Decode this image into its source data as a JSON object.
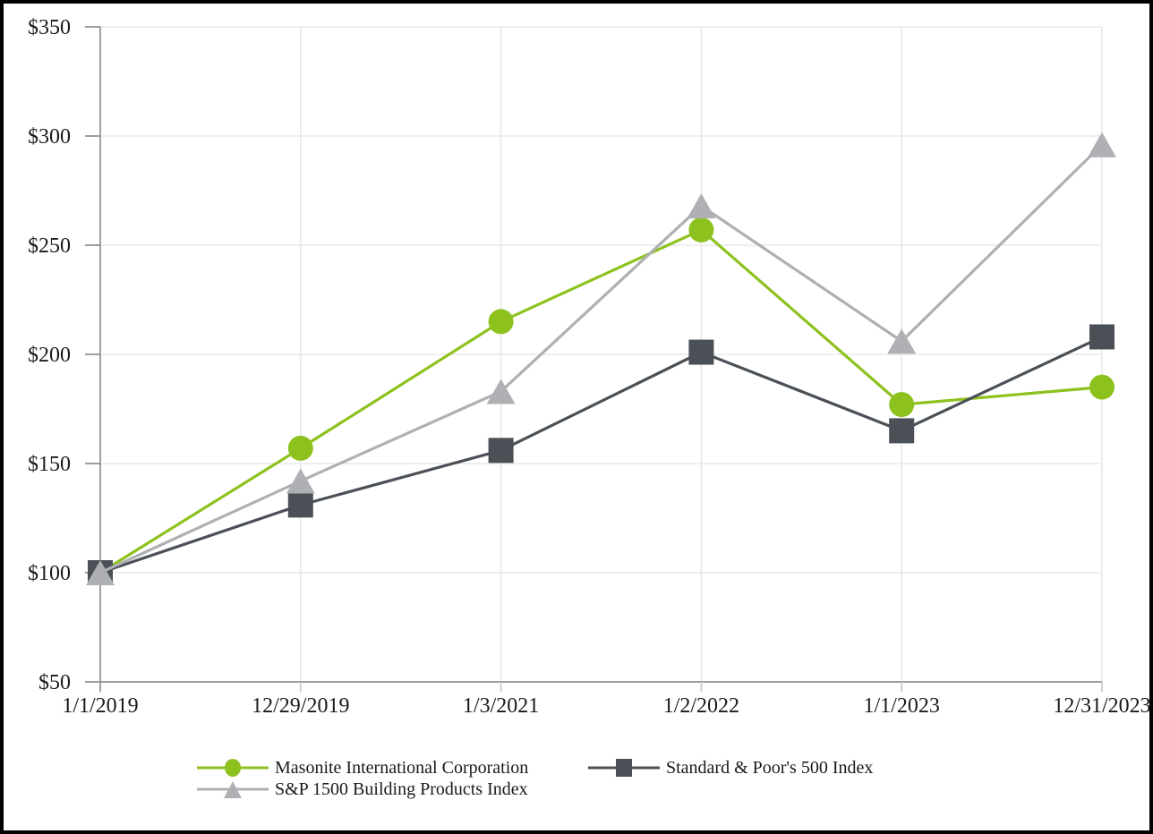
{
  "chart_data": {
    "type": "line",
    "x_labels": [
      "1/1/2019",
      "12/29/2019",
      "1/3/2021",
      "1/2/2022",
      "1/1/2023",
      "12/31/2023"
    ],
    "y_tick_labels": [
      "$50",
      "$100",
      "$150",
      "$200",
      "$250",
      "$300",
      "$350"
    ],
    "ylim": [
      50,
      350
    ],
    "y_tick_step": 50,
    "grid": true,
    "legend_position": "bottom",
    "series": [
      {
        "name": "Masonite International Corporation",
        "marker": "circle",
        "color": "#8dc21e",
        "values": [
          100,
          157,
          215,
          257,
          177,
          185
        ]
      },
      {
        "name": "Standard & Poor's 500 Index",
        "marker": "square",
        "color": "#4a5056",
        "values": [
          100,
          131,
          156,
          201,
          165,
          208
        ]
      },
      {
        "name": "S&P 1500 Building Products Index",
        "marker": "triangle",
        "color": "#aeb0b3",
        "values": [
          100,
          142,
          183,
          268,
          206,
          296
        ]
      }
    ],
    "colors": {
      "axis": "#8f8f8f",
      "grid": "#e8e8e8",
      "minor_tick": "#c9c9c9",
      "label": "#1a1a1a",
      "frame_border": "#000000",
      "background": "#ffffff"
    }
  }
}
